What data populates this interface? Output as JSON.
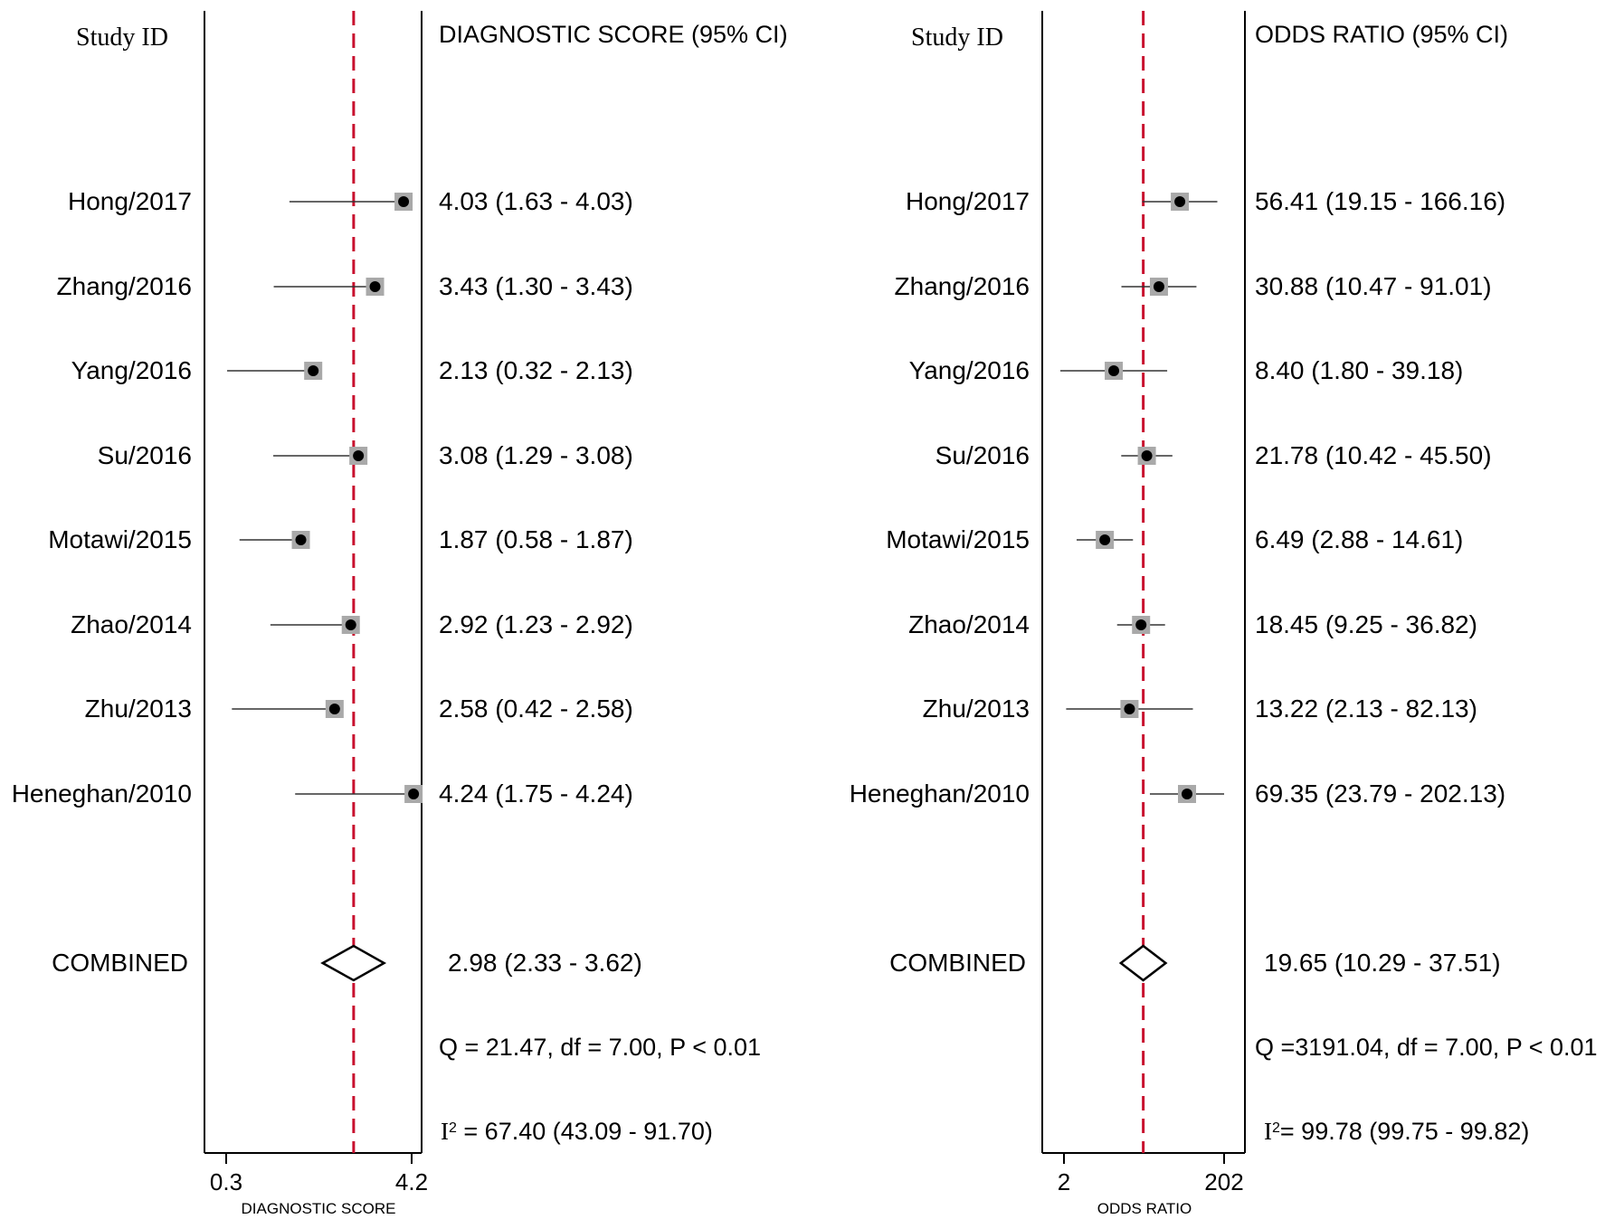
{
  "chart_data": [
    {
      "type": "forest",
      "header_left": "Study ID",
      "header_right": "DIAGNOSTIC SCORE (95% CI)",
      "xlabel": "DIAGNOSTIC SCORE",
      "x_ticks": [
        "0.3",
        "4.2"
      ],
      "xlim": [
        0.3,
        4.2
      ],
      "scale": "linear",
      "reference_line": 2.98,
      "studies": [
        {
          "label": "Hong/2017",
          "estimate": 4.03,
          "ci_low": 1.63,
          "ci_high": 4.03,
          "text": "4.03 (1.63 - 4.03)"
        },
        {
          "label": "Zhang/2016",
          "estimate": 3.43,
          "ci_low": 1.3,
          "ci_high": 3.43,
          "text": "3.43 (1.30 - 3.43)"
        },
        {
          "label": "Yang/2016",
          "estimate": 2.13,
          "ci_low": 0.32,
          "ci_high": 2.13,
          "text": "2.13 (0.32 - 2.13)"
        },
        {
          "label": "Su/2016",
          "estimate": 3.08,
          "ci_low": 1.29,
          "ci_high": 3.08,
          "text": "3.08 (1.29 - 3.08)"
        },
        {
          "label": "Motawi/2015",
          "estimate": 1.87,
          "ci_low": 0.58,
          "ci_high": 1.87,
          "text": "1.87 (0.58 - 1.87)"
        },
        {
          "label": "Zhao/2014",
          "estimate": 2.92,
          "ci_low": 1.23,
          "ci_high": 2.92,
          "text": "2.92 (1.23 - 2.92)"
        },
        {
          "label": "Zhu/2013",
          "estimate": 2.58,
          "ci_low": 0.42,
          "ci_high": 2.58,
          "text": "2.58 (0.42 - 2.58)"
        },
        {
          "label": "Heneghan/2010",
          "estimate": 4.24,
          "ci_low": 1.75,
          "ci_high": 4.24,
          "text": "4.24 (1.75 - 4.24)"
        }
      ],
      "combined": {
        "label": "COMBINED",
        "estimate": 2.98,
        "ci_low": 2.33,
        "ci_high": 3.62,
        "text": "2.98 (2.33 - 3.62)"
      },
      "q_stat": "Q = 21.47, df = 7.00, P < 0.01",
      "i2_symbol": "I",
      "i2_sup": "2",
      "i2_stat": " = 67.40 (43.09 - 91.70)"
    },
    {
      "type": "forest",
      "header_left": "Study ID",
      "header_right": "ODDS RATIO (95% CI)",
      "xlabel": "ODDS RATIO",
      "x_ticks": [
        "2",
        "202"
      ],
      "xlim": [
        2,
        202
      ],
      "scale": "log",
      "reference_line": 19.65,
      "studies": [
        {
          "label": "Hong/2017",
          "estimate": 56.41,
          "ci_low": 19.15,
          "ci_high": 166.16,
          "text": "56.41 (19.15 - 166.16)"
        },
        {
          "label": "Zhang/2016",
          "estimate": 30.88,
          "ci_low": 10.47,
          "ci_high": 91.01,
          "text": "30.88 (10.47 - 91.01)"
        },
        {
          "label": "Yang/2016",
          "estimate": 8.4,
          "ci_low": 1.8,
          "ci_high": 39.18,
          "text": "8.40 (1.80 - 39.18)"
        },
        {
          "label": "Su/2016",
          "estimate": 21.78,
          "ci_low": 10.42,
          "ci_high": 45.5,
          "text": "21.78 (10.42 - 45.50)"
        },
        {
          "label": "Motawi/2015",
          "estimate": 6.49,
          "ci_low": 2.88,
          "ci_high": 14.61,
          "text": "6.49 (2.88 - 14.61)"
        },
        {
          "label": "Zhao/2014",
          "estimate": 18.45,
          "ci_low": 9.25,
          "ci_high": 36.82,
          "text": "18.45 (9.25 - 36.82)"
        },
        {
          "label": "Zhu/2013",
          "estimate": 13.22,
          "ci_low": 2.13,
          "ci_high": 82.13,
          "text": "13.22 (2.13 - 82.13)"
        },
        {
          "label": "Heneghan/2010",
          "estimate": 69.35,
          "ci_low": 23.79,
          "ci_high": 202.13,
          "text": "69.35 (23.79 - 202.13)"
        }
      ],
      "combined": {
        "label": "COMBINED",
        "estimate": 19.65,
        "ci_low": 10.29,
        "ci_high": 37.51,
        "text": "19.65 (10.29 - 37.51)"
      },
      "q_stat": "Q =3191.04, df = 7.00, P < 0.01",
      "i2_symbol": "I",
      "i2_sup": "2",
      "i2_stat": "= 99.78 (99.75 - 99.82)"
    }
  ],
  "colors": {
    "reference_line": "#c8102e",
    "box_fill": "#a9a9a9",
    "axis": "#000000"
  }
}
